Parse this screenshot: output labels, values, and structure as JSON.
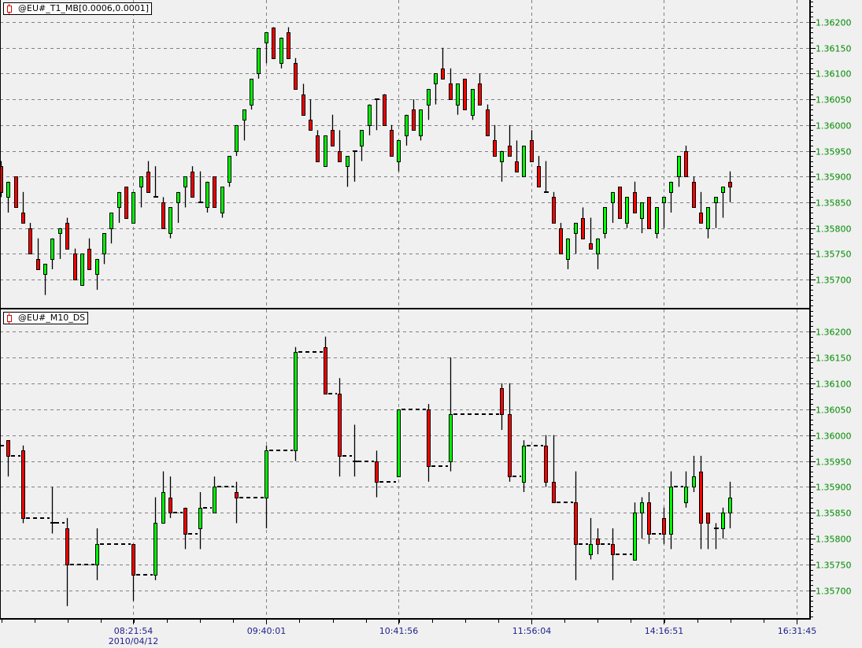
{
  "panels": [
    {
      "title": "@EU#_T1_MB[0.0006,0.0001]"
    },
    {
      "title": "@EU#_M10_DS"
    }
  ],
  "colors": {
    "up": "#00ff00",
    "down": "#ff0000",
    "background": "#f0f0f0",
    "grid": "#808080",
    "price_labels": "#008a00",
    "time_labels": "#1e1e8c"
  },
  "chart_data": [
    {
      "type": "candlestick",
      "grid": true,
      "ylim": [
        1.3565,
        1.3625
      ],
      "y_ticks": [
        "1.36200",
        "1.36150",
        "1.36100",
        "1.36050",
        "1.36000",
        "1.35950",
        "1.35900",
        "1.35850",
        "1.35800",
        "1.35750",
        "1.35700"
      ],
      "fields": [
        "open",
        "high",
        "low",
        "close"
      ],
      "candles": [
        [
          1.3592,
          1.3593,
          1.3586,
          1.3587
        ],
        [
          1.3586,
          1.3589,
          1.3583,
          1.3589
        ],
        [
          1.359,
          1.359,
          1.3584,
          1.3584
        ],
        [
          1.3583,
          1.3587,
          1.3581,
          1.3581
        ],
        [
          1.358,
          1.3581,
          1.3575,
          1.3575
        ],
        [
          1.3574,
          1.3578,
          1.3572,
          1.3572
        ],
        [
          1.3571,
          1.3573,
          1.3567,
          1.3573
        ],
        [
          1.3574,
          1.3578,
          1.3572,
          1.3578
        ],
        [
          1.3579,
          1.358,
          1.3574,
          1.358
        ],
        [
          1.3581,
          1.3582,
          1.3576,
          1.3576
        ],
        [
          1.3575,
          1.3576,
          1.357,
          1.357
        ],
        [
          1.3569,
          1.3575,
          1.3569,
          1.3575
        ],
        [
          1.3576,
          1.3578,
          1.3572,
          1.3572
        ],
        [
          1.3571,
          1.3574,
          1.3568,
          1.3574
        ],
        [
          1.3575,
          1.3579,
          1.3573,
          1.3579
        ],
        [
          1.358,
          1.3583,
          1.3577,
          1.3583
        ],
        [
          1.3584,
          1.3587,
          1.3581,
          1.3587
        ],
        [
          1.3588,
          1.3588,
          1.3582,
          1.3582
        ],
        [
          1.3581,
          1.3587,
          1.3581,
          1.3587
        ],
        [
          1.3588,
          1.359,
          1.3584,
          1.359
        ],
        [
          1.3591,
          1.3593,
          1.3587,
          1.3587
        ],
        [
          1.3586,
          1.3592,
          1.3586,
          1.3586
        ],
        [
          1.3585,
          1.3586,
          1.358,
          1.358
        ],
        [
          1.3579,
          1.3584,
          1.3578,
          1.3584
        ],
        [
          1.3585,
          1.3587,
          1.3581,
          1.3587
        ],
        [
          1.3588,
          1.359,
          1.3584,
          1.359
        ],
        [
          1.3591,
          1.3592,
          1.3586,
          1.3586
        ],
        [
          1.3585,
          1.3591,
          1.3585,
          1.3585
        ],
        [
          1.3584,
          1.3589,
          1.3583,
          1.3589
        ],
        [
          1.359,
          1.359,
          1.3584,
          1.3584
        ],
        [
          1.3583,
          1.3588,
          1.3582,
          1.3588
        ],
        [
          1.3589,
          1.3594,
          1.3588,
          1.3594
        ],
        [
          1.3595,
          1.36,
          1.3594,
          1.36
        ],
        [
          1.3601,
          1.3603,
          1.3597,
          1.3603
        ],
        [
          1.3604,
          1.3609,
          1.3603,
          1.3609
        ],
        [
          1.361,
          1.3615,
          1.3609,
          1.3615
        ],
        [
          1.3616,
          1.3618,
          1.3612,
          1.3618
        ],
        [
          1.3619,
          1.3619,
          1.3613,
          1.3613
        ],
        [
          1.3612,
          1.3617,
          1.3611,
          1.3617
        ],
        [
          1.3618,
          1.3619,
          1.3613,
          1.3613
        ],
        [
          1.3612,
          1.3613,
          1.3607,
          1.3607
        ],
        [
          1.3606,
          1.3608,
          1.3602,
          1.3602
        ],
        [
          1.3601,
          1.3605,
          1.3599,
          1.3599
        ],
        [
          1.3598,
          1.3599,
          1.3593,
          1.3593
        ],
        [
          1.3592,
          1.3598,
          1.3592,
          1.3598
        ],
        [
          1.3599,
          1.3602,
          1.3596,
          1.3596
        ],
        [
          1.3595,
          1.3599,
          1.3593,
          1.3593
        ],
        [
          1.3592,
          1.3594,
          1.3588,
          1.3594
        ],
        [
          1.3595,
          1.3595,
          1.3589,
          1.3595
        ],
        [
          1.3596,
          1.3599,
          1.3593,
          1.3599
        ],
        [
          1.36,
          1.3604,
          1.3598,
          1.3604
        ],
        [
          1.3605,
          1.3605,
          1.3599,
          1.3605
        ],
        [
          1.3606,
          1.3606,
          1.36,
          1.36
        ],
        [
          1.3599,
          1.36,
          1.3594,
          1.3594
        ],
        [
          1.3593,
          1.3597,
          1.3591,
          1.3597
        ],
        [
          1.3598,
          1.3602,
          1.3596,
          1.3602
        ],
        [
          1.3603,
          1.3605,
          1.3599,
          1.3599
        ],
        [
          1.3598,
          1.3603,
          1.3597,
          1.3603
        ],
        [
          1.3604,
          1.3607,
          1.3601,
          1.3607
        ],
        [
          1.3608,
          1.361,
          1.3604,
          1.361
        ],
        [
          1.3611,
          1.3615,
          1.3609,
          1.3609
        ],
        [
          1.3608,
          1.3611,
          1.3605,
          1.3605
        ],
        [
          1.3604,
          1.3608,
          1.3602,
          1.3608
        ],
        [
          1.3609,
          1.3609,
          1.3603,
          1.3603
        ],
        [
          1.3602,
          1.3607,
          1.3601,
          1.3607
        ],
        [
          1.3608,
          1.361,
          1.3604,
          1.3604
        ],
        [
          1.3603,
          1.3604,
          1.3598,
          1.3598
        ],
        [
          1.3597,
          1.36,
          1.3594,
          1.3594
        ],
        [
          1.3593,
          1.3595,
          1.3589,
          1.3595
        ],
        [
          1.3596,
          1.36,
          1.3594,
          1.3594
        ],
        [
          1.3593,
          1.3597,
          1.3591,
          1.3591
        ],
        [
          1.359,
          1.3596,
          1.359,
          1.3596
        ],
        [
          1.3597,
          1.3599,
          1.3593,
          1.3593
        ],
        [
          1.3592,
          1.3594,
          1.3588,
          1.3588
        ],
        [
          1.3587,
          1.3593,
          1.3587,
          1.3587
        ],
        [
          1.3586,
          1.3587,
          1.3581,
          1.3581
        ],
        [
          1.358,
          1.3581,
          1.3575,
          1.3575
        ],
        [
          1.3574,
          1.3578,
          1.3572,
          1.3578
        ],
        [
          1.3579,
          1.3581,
          1.3575,
          1.3581
        ],
        [
          1.3582,
          1.3584,
          1.3578,
          1.3578
        ],
        [
          1.3577,
          1.3582,
          1.3576,
          1.3576
        ],
        [
          1.3575,
          1.3578,
          1.3572,
          1.3578
        ],
        [
          1.3579,
          1.3584,
          1.3578,
          1.3584
        ],
        [
          1.3585,
          1.3587,
          1.3581,
          1.3587
        ],
        [
          1.3588,
          1.3588,
          1.3582,
          1.3582
        ],
        [
          1.3581,
          1.3586,
          1.358,
          1.3586
        ],
        [
          1.3587,
          1.3589,
          1.3583,
          1.3583
        ],
        [
          1.3582,
          1.3585,
          1.3579,
          1.3585
        ],
        [
          1.3586,
          1.3586,
          1.358,
          1.358
        ],
        [
          1.3579,
          1.3584,
          1.3578,
          1.3584
        ],
        [
          1.3585,
          1.3586,
          1.358,
          1.3586
        ],
        [
          1.3587,
          1.3589,
          1.3583,
          1.3589
        ],
        [
          1.359,
          1.3594,
          1.3588,
          1.3594
        ],
        [
          1.3595,
          1.3596,
          1.359,
          1.359
        ],
        [
          1.3589,
          1.359,
          1.3584,
          1.3584
        ],
        [
          1.3583,
          1.3587,
          1.3581,
          1.3581
        ],
        [
          1.358,
          1.3584,
          1.3578,
          1.3584
        ],
        [
          1.3585,
          1.3586,
          1.358,
          1.3586
        ],
        [
          1.3587,
          1.3588,
          1.3582,
          1.3588
        ],
        [
          1.3589,
          1.3591,
          1.3585,
          1.3588
        ]
      ]
    },
    {
      "type": "candlestick",
      "grid": true,
      "ylim": [
        1.3565,
        1.3625
      ],
      "y_ticks": [
        "1.36200",
        "1.36150",
        "1.36100",
        "1.36050",
        "1.36000",
        "1.35950",
        "1.35900",
        "1.35850",
        "1.35800",
        "1.35750",
        "1.35700"
      ],
      "fields": [
        "bar",
        "open",
        "high",
        "low",
        "close"
      ],
      "candles": [
        [
          0,
          1.3598,
          1.3598,
          1.3598,
          1.3598
        ],
        [
          1,
          1.3599,
          1.3599,
          1.3592,
          1.3596
        ],
        [
          3,
          1.3597,
          1.3598,
          1.3583,
          1.3584
        ],
        [
          7,
          1.3583,
          1.359,
          1.3581,
          1.3583
        ],
        [
          9,
          1.3582,
          1.3584,
          1.3567,
          1.3575
        ],
        [
          13,
          1.3575,
          1.3582,
          1.3572,
          1.3579
        ],
        [
          18,
          1.3579,
          1.3579,
          1.3568,
          1.3573
        ],
        [
          21,
          1.3573,
          1.3588,
          1.3572,
          1.3583
        ],
        [
          22,
          1.3583,
          1.3593,
          1.3583,
          1.3589
        ],
        [
          23,
          1.3588,
          1.3592,
          1.3584,
          1.3585
        ],
        [
          25,
          1.3586,
          1.3586,
          1.3578,
          1.3581
        ],
        [
          27,
          1.3582,
          1.3589,
          1.3578,
          1.3586
        ],
        [
          29,
          1.3585,
          1.3592,
          1.3585,
          1.359
        ],
        [
          32,
          1.3589,
          1.3591,
          1.3583,
          1.3588
        ],
        [
          36,
          1.3588,
          1.3598,
          1.3582,
          1.3597
        ],
        [
          40,
          1.3597,
          1.3617,
          1.3595,
          1.3616
        ],
        [
          44,
          1.3617,
          1.3619,
          1.3608,
          1.3608
        ],
        [
          46,
          1.3608,
          1.3611,
          1.3592,
          1.3596
        ],
        [
          48,
          1.3595,
          1.3602,
          1.3592,
          1.3595
        ],
        [
          51,
          1.3595,
          1.3597,
          1.3588,
          1.3591
        ],
        [
          54,
          1.3592,
          1.3605,
          1.3592,
          1.3605
        ],
        [
          58,
          1.3605,
          1.3606,
          1.3591,
          1.3594
        ],
        [
          61,
          1.3595,
          1.3615,
          1.3593,
          1.3604
        ],
        [
          68,
          1.3609,
          1.361,
          1.3601,
          1.3604
        ],
        [
          69,
          1.3604,
          1.361,
          1.3591,
          1.3592
        ],
        [
          71,
          1.3591,
          1.3599,
          1.3589,
          1.3598
        ],
        [
          74,
          1.3598,
          1.36,
          1.359,
          1.3591
        ],
        [
          75,
          1.3591,
          1.36,
          1.3587,
          1.3587
        ],
        [
          78,
          1.3587,
          1.3593,
          1.3572,
          1.3579
        ],
        [
          80,
          1.3577,
          1.3584,
          1.3576,
          1.3579
        ],
        [
          81,
          1.358,
          1.3582,
          1.3577,
          1.3579
        ],
        [
          83,
          1.3579,
          1.3582,
          1.3572,
          1.3577
        ],
        [
          86,
          1.3576,
          1.3587,
          1.3576,
          1.3585
        ],
        [
          87,
          1.3585,
          1.3588,
          1.358,
          1.3587
        ],
        [
          88,
          1.3587,
          1.3589,
          1.3579,
          1.3581
        ],
        [
          90,
          1.3584,
          1.3586,
          1.3579,
          1.3581
        ],
        [
          91,
          1.3581,
          1.3593,
          1.3578,
          1.359
        ],
        [
          93,
          1.3587,
          1.3593,
          1.3586,
          1.359
        ],
        [
          94,
          1.359,
          1.3596,
          1.3589,
          1.3592
        ],
        [
          95,
          1.3593,
          1.3596,
          1.3578,
          1.3583
        ],
        [
          96,
          1.3585,
          1.3585,
          1.3578,
          1.3583
        ],
        [
          97,
          1.3582,
          1.3583,
          1.3578,
          1.3582
        ],
        [
          98,
          1.3582,
          1.3586,
          1.358,
          1.3585
        ],
        [
          99,
          1.3585,
          1.3591,
          1.3582,
          1.3588
        ]
      ]
    }
  ],
  "x_axis": {
    "tick_labels": [
      "08:21:54",
      "09:40:01",
      "10:41:56",
      "11:56:04",
      "14:16:51",
      "16:31:45"
    ],
    "date_label": "2010/04/12"
  }
}
